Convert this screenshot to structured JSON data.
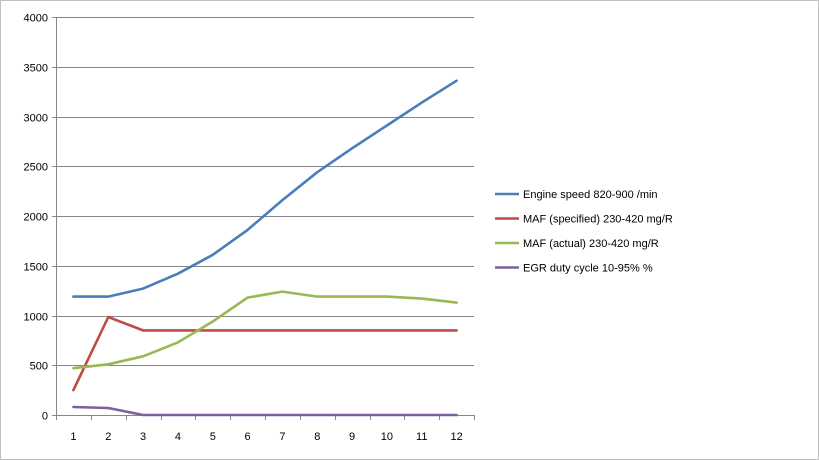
{
  "chart_data": {
    "type": "line",
    "title": "",
    "xlabel": "",
    "ylabel": "",
    "categories": [
      "1",
      "2",
      "3",
      "4",
      "5",
      "6",
      "7",
      "8",
      "9",
      "10",
      "11",
      "12"
    ],
    "ylim": [
      0,
      4000
    ],
    "yticks": [
      "0",
      "500",
      "1000",
      "1500",
      "2000",
      "2500",
      "3000",
      "3500",
      "4000"
    ],
    "grid": "horizontal-major",
    "legend_position": "right",
    "series": [
      {
        "name": "Engine speed 820-900  /min",
        "color": "#4a7ebb",
        "values": [
          1190,
          1190,
          1270,
          1420,
          1610,
          1860,
          2160,
          2440,
          2680,
          2910,
          3140,
          3360
        ]
      },
      {
        "name": "MAF (specified) 230-420  mg/R",
        "color": "#be4b48",
        "values": [
          250,
          985,
          850,
          850,
          850,
          850,
          850,
          850,
          850,
          850,
          850,
          850
        ]
      },
      {
        "name": "MAF (actual)  230-420  mg/R",
        "color": "#98b954",
        "values": [
          470,
          510,
          590,
          730,
          940,
          1180,
          1240,
          1190,
          1190,
          1190,
          1170,
          1130
        ]
      },
      {
        "name": "EGR duty cycle 10-95%  %",
        "color": "#7d60a0",
        "values": [
          80,
          70,
          0,
          0,
          0,
          0,
          0,
          0,
          0,
          0,
          0,
          0
        ]
      }
    ]
  }
}
